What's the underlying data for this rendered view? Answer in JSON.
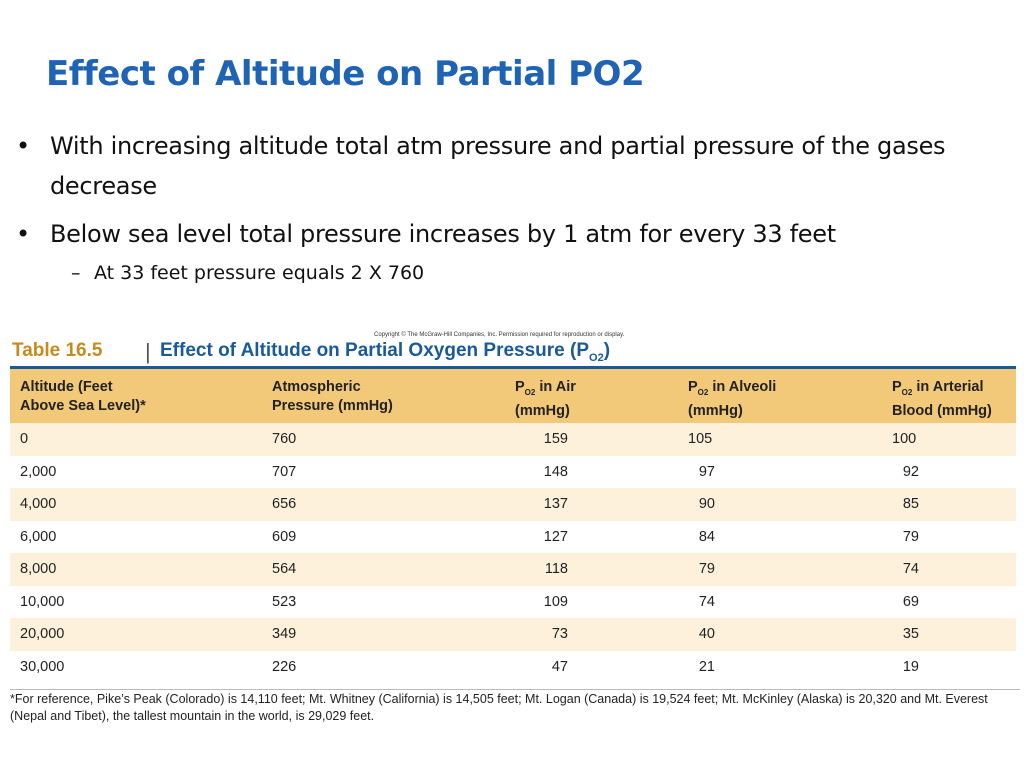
{
  "slide": {
    "title": "Effect of Altitude on Partial PO2",
    "bullets": [
      "With increasing altitude total atm pressure and partial pressure of the gases decrease",
      "Below sea level total pressure increases by 1 atm for every 33 feet"
    ],
    "sub_bullet": "At 33 feet pressure equals 2 X 760",
    "bullet_marker": "•",
    "sub_marker": "–"
  },
  "table": {
    "copyright": "Copyright © The McGraw-Hill Companies, Inc. Permission required for reproduction or display.",
    "label": "Table 16.5",
    "separator": "|",
    "caption": "Effect of Altitude on Partial Oxygen Pressure",
    "caption_symbol_main": "P",
    "caption_symbol_sub": "O2",
    "headers": {
      "altitude_line1": "Altitude (Feet",
      "altitude_line2": "Above Sea Level)*",
      "atm_line1": "Atmospheric",
      "atm_line2": "Pressure (mmHg)",
      "p_main": "P",
      "p_sub": "O2",
      "air_line1_rest": " in Air",
      "air_line2": "(mmHg)",
      "alveoli_line1_rest": " in Alveoli",
      "alveoli_line2": "(mmHg)",
      "arterial_line1_rest": " in Arterial",
      "arterial_line2": "Blood (mmHg)"
    },
    "rows": [
      [
        "0",
        "760",
        "159",
        "105",
        "100"
      ],
      [
        "2,000",
        "707",
        "148",
        "97",
        "92"
      ],
      [
        "4,000",
        "656",
        "137",
        "90",
        "85"
      ],
      [
        "6,000",
        "609",
        "127",
        "84",
        "79"
      ],
      [
        "8,000",
        "564",
        "118",
        "79",
        "74"
      ],
      [
        "10,000",
        "523",
        "109",
        "74",
        "69"
      ],
      [
        "20,000",
        "349",
        "73",
        "40",
        "35"
      ],
      [
        "30,000",
        "226",
        "47",
        "21",
        "19"
      ]
    ],
    "footnote": "*For reference, Pike’s Peak (Colorado) is 14,110 feet; Mt. Whitney (California) is 14,505 feet; Mt. Logan (Canada) is 19,524 feet; Mt. McKinley (Alaska) is 20,320 and Mt. Everest (Nepal and Tibet), the tallest mountain in the world, is 29,029 feet."
  },
  "colors": {
    "title": "#1f63b5",
    "table_label": "#c78a1f",
    "table_caption": "#1a5a9a",
    "header_bg": "#f2c879",
    "stripe_bg": "#fdf1dc"
  }
}
